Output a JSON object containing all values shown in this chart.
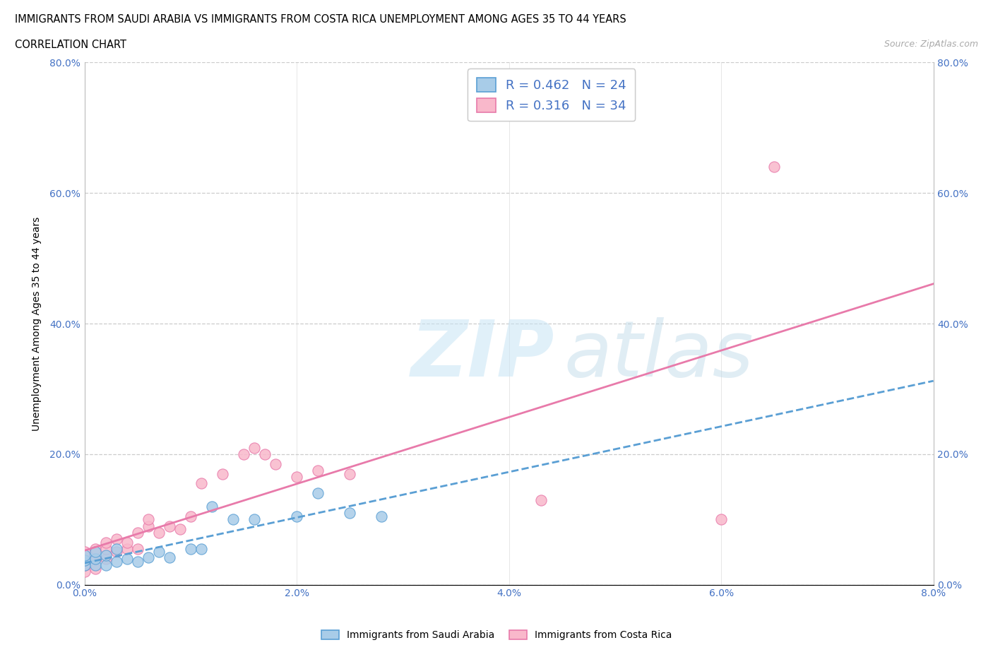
{
  "title_line1": "IMMIGRANTS FROM SAUDI ARABIA VS IMMIGRANTS FROM COSTA RICA UNEMPLOYMENT AMONG AGES 35 TO 44 YEARS",
  "title_line2": "CORRELATION CHART",
  "source": "Source: ZipAtlas.com",
  "x_min": 0.0,
  "x_max": 0.08,
  "y_min": 0.0,
  "y_max": 0.8,
  "color_saudi": "#a8cce8",
  "color_saudi_edge": "#5a9fd4",
  "color_costa": "#f9b8cb",
  "color_costa_edge": "#e87aaa",
  "color_text_blue": "#4472c4",
  "color_reg_saudi": "#5a9fd4",
  "color_reg_costa": "#e87aaa",
  "legend_r_saudi": "0.462",
  "legend_n_saudi": "24",
  "legend_r_costa": "0.316",
  "legend_n_costa": "34",
  "legend_label_saudi": "Immigrants from Saudi Arabia",
  "legend_label_costa": "Immigrants from Costa Rica",
  "ylabel": "Unemployment Among Ages 35 to 44 years",
  "ytick_vals": [
    0.0,
    0.2,
    0.4,
    0.6,
    0.8
  ],
  "xtick_vals": [
    0.0,
    0.02,
    0.04,
    0.06,
    0.08
  ],
  "saudi_x": [
    0.0,
    0.0,
    0.0,
    0.001,
    0.001,
    0.001,
    0.002,
    0.002,
    0.003,
    0.003,
    0.004,
    0.005,
    0.006,
    0.007,
    0.008,
    0.01,
    0.011,
    0.012,
    0.014,
    0.016,
    0.02,
    0.022,
    0.025,
    0.028
  ],
  "saudi_y": [
    0.03,
    0.038,
    0.045,
    0.03,
    0.04,
    0.05,
    0.03,
    0.045,
    0.035,
    0.055,
    0.04,
    0.035,
    0.042,
    0.05,
    0.042,
    0.055,
    0.055,
    0.12,
    0.1,
    0.1,
    0.105,
    0.14,
    0.11,
    0.105
  ],
  "costa_x": [
    0.0,
    0.0,
    0.0,
    0.0,
    0.001,
    0.001,
    0.001,
    0.002,
    0.002,
    0.002,
    0.003,
    0.003,
    0.004,
    0.004,
    0.005,
    0.005,
    0.006,
    0.006,
    0.007,
    0.008,
    0.009,
    0.01,
    0.011,
    0.013,
    0.015,
    0.016,
    0.017,
    0.018,
    0.02,
    0.022,
    0.025,
    0.043,
    0.06,
    0.065
  ],
  "costa_y": [
    0.02,
    0.03,
    0.038,
    0.05,
    0.025,
    0.04,
    0.055,
    0.04,
    0.055,
    0.065,
    0.05,
    0.07,
    0.055,
    0.065,
    0.055,
    0.08,
    0.09,
    0.1,
    0.08,
    0.09,
    0.085,
    0.105,
    0.155,
    0.17,
    0.2,
    0.21,
    0.2,
    0.185,
    0.165,
    0.175,
    0.17,
    0.13,
    0.1,
    0.64
  ]
}
